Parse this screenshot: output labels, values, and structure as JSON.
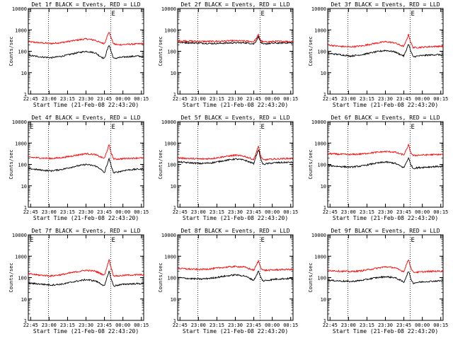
{
  "x_ticks": [
    "22:45",
    "23:00",
    "23:15",
    "23:30",
    "23:45",
    "00:00",
    "00:15"
  ],
  "x_label": "Start Time (21-Feb-08 22:43:20)",
  "y_label": "Counts/sec",
  "y_ticks": [
    "1",
    "10",
    "100",
    "1000",
    "10000"
  ],
  "colors": {
    "events": "#000000",
    "lld": "#ff0000"
  },
  "chart_data": [
    {
      "type": "line",
      "title": "Det 1f BLACK = Events, RED = LLD",
      "marker_left": "",
      "marker_right": "E",
      "xlabel": "Start Time (21-Feb-08 22:43:20)",
      "ylabel": "Counts/sec",
      "yscale": "log",
      "ylim": [
        1,
        10000
      ],
      "xlim": [
        0,
        100
      ],
      "series": [
        {
          "color": "#ff0000",
          "base": 230,
          "hump": 150,
          "peak": 800,
          "x": [
            0,
            10,
            20,
            30,
            40,
            50,
            58,
            62,
            66,
            68,
            70,
            72,
            74,
            78,
            85,
            95,
            100
          ],
          "y": [
            280,
            250,
            230,
            260,
            320,
            380,
            330,
            260,
            230,
            450,
            800,
            400,
            220,
            200,
            210,
            220,
            230
          ]
        },
        {
          "color": "#000000",
          "base": 55,
          "hump": 45,
          "peak": 200,
          "x": [
            0,
            10,
            20,
            30,
            40,
            50,
            58,
            62,
            66,
            68,
            70,
            72,
            74,
            78,
            85,
            95,
            100
          ],
          "y": [
            65,
            55,
            50,
            60,
            80,
            100,
            85,
            60,
            45,
            100,
            200,
            90,
            45,
            50,
            55,
            60,
            55
          ]
        }
      ]
    },
    {
      "type": "line",
      "title": "Det 2f BLACK = Events, RED = LLD",
      "marker_left": "",
      "marker_right": "E",
      "xlabel": "Start Time (21-Feb-08 22:43:20)",
      "ylabel": "Counts/sec",
      "yscale": "log",
      "ylim": [
        1,
        10000
      ],
      "xlim": [
        0,
        100
      ],
      "series": [
        {
          "color": "#ff0000",
          "base": 300,
          "hump": 0,
          "peak": 600,
          "x": [
            0,
            10,
            20,
            30,
            40,
            50,
            58,
            62,
            66,
            68,
            70,
            72,
            74,
            78,
            85,
            95,
            100
          ],
          "y": [
            310,
            300,
            290,
            290,
            300,
            310,
            300,
            290,
            280,
            380,
            600,
            320,
            270,
            280,
            290,
            290,
            280
          ]
        },
        {
          "color": "#000000",
          "base": 250,
          "hump": 0,
          "peak": 500,
          "x": [
            0,
            10,
            20,
            30,
            40,
            50,
            58,
            62,
            66,
            68,
            70,
            72,
            74,
            78,
            85,
            95,
            100
          ],
          "y": [
            260,
            250,
            240,
            230,
            240,
            250,
            250,
            240,
            220,
            300,
            500,
            260,
            210,
            230,
            240,
            250,
            240
          ]
        }
      ]
    },
    {
      "type": "line",
      "title": "Det 3f BLACK = Events, RED = LLD",
      "marker_left": "",
      "marker_right": "E",
      "xlabel": "Start Time (21-Feb-08 22:43:20)",
      "ylabel": "Counts/sec",
      "yscale": "log",
      "ylim": [
        1,
        10000
      ],
      "xlim": [
        0,
        100
      ],
      "series": [
        {
          "color": "#ff0000",
          "base": 180,
          "hump": 120,
          "peak": 600,
          "x": [
            0,
            10,
            20,
            30,
            40,
            50,
            58,
            62,
            66,
            68,
            70,
            72,
            74,
            78,
            85,
            95,
            100
          ],
          "y": [
            200,
            170,
            160,
            180,
            230,
            280,
            250,
            200,
            170,
            300,
            600,
            260,
            150,
            150,
            160,
            170,
            170
          ]
        },
        {
          "color": "#000000",
          "base": 70,
          "hump": 50,
          "peak": 220,
          "x": [
            0,
            10,
            20,
            30,
            40,
            50,
            58,
            62,
            66,
            68,
            70,
            72,
            74,
            78,
            85,
            95,
            100
          ],
          "y": [
            80,
            70,
            60,
            70,
            90,
            110,
            95,
            75,
            60,
            110,
            220,
            100,
            55,
            60,
            65,
            70,
            65
          ]
        }
      ]
    },
    {
      "type": "line",
      "title": "Det 4f BLACK = Events, RED = LLD",
      "marker_left": "E",
      "marker_right": "E",
      "xlabel": "Start Time (21-Feb-08 22:43:20)",
      "ylabel": "Counts/sec",
      "yscale": "log",
      "ylim": [
        1,
        10000
      ],
      "xlim": [
        0,
        100
      ],
      "series": [
        {
          "color": "#ff0000",
          "base": 200,
          "hump": 120,
          "peak": 800,
          "x": [
            0,
            10,
            20,
            30,
            40,
            50,
            58,
            62,
            66,
            68,
            70,
            72,
            74,
            78,
            85,
            95,
            100
          ],
          "y": [
            220,
            200,
            190,
            210,
            260,
            320,
            290,
            230,
            190,
            400,
            800,
            320,
            180,
            180,
            190,
            200,
            200
          ]
        },
        {
          "color": "#000000",
          "base": 60,
          "hump": 45,
          "peak": 180,
          "x": [
            0,
            10,
            20,
            30,
            40,
            50,
            58,
            62,
            66,
            68,
            70,
            72,
            74,
            78,
            85,
            95,
            100
          ],
          "y": [
            65,
            55,
            50,
            60,
            80,
            100,
            85,
            65,
            40,
            90,
            180,
            80,
            40,
            45,
            55,
            60,
            60
          ]
        }
      ]
    },
    {
      "type": "line",
      "title": "Det 5f BLACK = Events, RED = LLD",
      "marker_left": "",
      "marker_right": "E",
      "xlabel": "Start Time (21-Feb-08 22:43:20)",
      "ylabel": "Counts/sec",
      "yscale": "log",
      "ylim": [
        1,
        10000
      ],
      "xlim": [
        0,
        100
      ],
      "series": [
        {
          "color": "#ff0000",
          "base": 180,
          "hump": 80,
          "peak": 700,
          "x": [
            0,
            10,
            20,
            30,
            40,
            50,
            58,
            62,
            66,
            68,
            70,
            72,
            74,
            78,
            85,
            95,
            100
          ],
          "y": [
            200,
            190,
            180,
            190,
            230,
            270,
            240,
            200,
            170,
            350,
            700,
            250,
            160,
            170,
            180,
            190,
            190
          ]
        },
        {
          "color": "#000000",
          "base": 120,
          "hump": 50,
          "peak": 500,
          "x": [
            0,
            10,
            20,
            30,
            40,
            50,
            58,
            62,
            66,
            68,
            70,
            72,
            74,
            78,
            85,
            95,
            100
          ],
          "y": [
            130,
            120,
            110,
            120,
            150,
            180,
            160,
            130,
            110,
            250,
            500,
            180,
            100,
            110,
            120,
            125,
            125
          ]
        }
      ]
    },
    {
      "type": "line",
      "title": "Det 6f BLACK = Events, RED = LLD",
      "marker_left": "",
      "marker_right": "E",
      "xlabel": "Start Time (21-Feb-08 22:43:20)",
      "ylabel": "Counts/sec",
      "yscale": "log",
      "ylim": [
        1,
        10000
      ],
      "xlim": [
        0,
        100
      ],
      "series": [
        {
          "color": "#ff0000",
          "base": 300,
          "hump": 120,
          "peak": 800,
          "x": [
            0,
            10,
            20,
            30,
            40,
            50,
            58,
            62,
            66,
            68,
            70,
            72,
            74,
            78,
            85,
            95,
            100
          ],
          "y": [
            320,
            300,
            290,
            310,
            360,
            400,
            380,
            320,
            280,
            450,
            800,
            360,
            260,
            270,
            280,
            290,
            290
          ]
        },
        {
          "color": "#000000",
          "base": 80,
          "hump": 50,
          "peak": 200,
          "x": [
            0,
            10,
            20,
            30,
            40,
            50,
            58,
            62,
            66,
            68,
            70,
            72,
            74,
            78,
            85,
            95,
            100
          ],
          "y": [
            90,
            80,
            75,
            85,
            110,
            130,
            115,
            90,
            70,
            120,
            200,
            100,
            65,
            70,
            75,
            80,
            80
          ]
        }
      ]
    },
    {
      "type": "line",
      "title": "Det 7f BLACK = Events, RED = LLD",
      "marker_left": "E",
      "marker_right": "E",
      "xlabel": "Start Time (21-Feb-08 22:43:20)",
      "ylabel": "Counts/sec",
      "yscale": "log",
      "ylim": [
        1,
        10000
      ],
      "xlim": [
        0,
        100
      ],
      "series": [
        {
          "color": "#ff0000",
          "base": 130,
          "hump": 100,
          "peak": 700,
          "x": [
            0,
            10,
            20,
            30,
            40,
            50,
            58,
            62,
            66,
            68,
            70,
            72,
            74,
            78,
            85,
            95,
            100
          ],
          "y": [
            150,
            130,
            120,
            140,
            180,
            220,
            200,
            160,
            130,
            300,
            700,
            260,
            120,
            120,
            130,
            135,
            135
          ]
        },
        {
          "color": "#000000",
          "base": 50,
          "hump": 35,
          "peak": 200,
          "x": [
            0,
            10,
            20,
            30,
            40,
            50,
            58,
            62,
            66,
            68,
            70,
            72,
            74,
            78,
            85,
            95,
            100
          ],
          "y": [
            55,
            50,
            45,
            50,
            65,
            80,
            70,
            55,
            40,
            90,
            200,
            80,
            40,
            45,
            50,
            52,
            52
          ]
        }
      ]
    },
    {
      "type": "line",
      "title": "Det 8f BLACK = Events, RED = LLD",
      "marker_left": "",
      "marker_right": "E",
      "xlabel": "Start Time (21-Feb-08 22:43:20)",
      "ylabel": "Counts/sec",
      "yscale": "log",
      "ylim": [
        1,
        10000
      ],
      "xlim": [
        0,
        100
      ],
      "series": [
        {
          "color": "#ff0000",
          "base": 250,
          "hump": 80,
          "peak": 600,
          "x": [
            0,
            10,
            20,
            30,
            40,
            50,
            58,
            62,
            66,
            68,
            70,
            72,
            74,
            78,
            85,
            95,
            100
          ],
          "y": [
            270,
            250,
            240,
            260,
            300,
            330,
            310,
            260,
            220,
            360,
            600,
            300,
            220,
            220,
            230,
            240,
            240
          ]
        },
        {
          "color": "#000000",
          "base": 90,
          "hump": 45,
          "peak": 200,
          "x": [
            0,
            10,
            20,
            30,
            40,
            50,
            58,
            62,
            66,
            68,
            70,
            72,
            74,
            78,
            85,
            95,
            100
          ],
          "y": [
            100,
            90,
            85,
            95,
            115,
            135,
            120,
            95,
            75,
            120,
            200,
            100,
            70,
            75,
            85,
            90,
            90
          ]
        }
      ]
    },
    {
      "type": "line",
      "title": "Det 9f BLACK = Events, RED = LLD",
      "marker_left": "",
      "marker_right": "E",
      "xlabel": "Start Time (21-Feb-08 22:43:20)",
      "ylabel": "Counts/sec",
      "yscale": "log",
      "ylim": [
        1,
        10000
      ],
      "xlim": [
        0,
        100
      ],
      "series": [
        {
          "color": "#ff0000",
          "base": 200,
          "hump": 120,
          "peak": 700,
          "x": [
            0,
            10,
            20,
            30,
            40,
            50,
            58,
            62,
            66,
            68,
            70,
            72,
            74,
            78,
            85,
            95,
            100
          ],
          "y": [
            220,
            200,
            190,
            210,
            260,
            320,
            290,
            230,
            190,
            380,
            700,
            300,
            180,
            180,
            190,
            200,
            200
          ]
        },
        {
          "color": "#000000",
          "base": 70,
          "hump": 40,
          "peak": 200,
          "x": [
            0,
            10,
            20,
            30,
            40,
            50,
            58,
            62,
            66,
            68,
            70,
            72,
            74,
            78,
            85,
            95,
            100
          ],
          "y": [
            75,
            70,
            65,
            75,
            95,
            110,
            100,
            80,
            60,
            110,
            200,
            90,
            55,
            60,
            65,
            70,
            70
          ]
        }
      ]
    }
  ]
}
